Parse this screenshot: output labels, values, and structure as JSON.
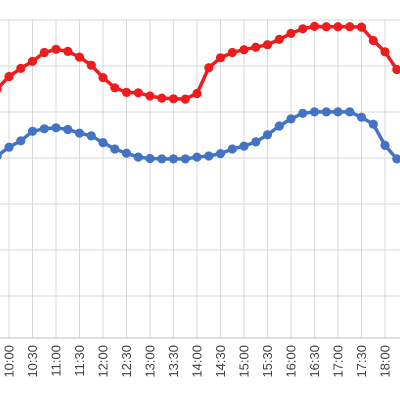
{
  "chart_data": {
    "type": "line",
    "categories": [
      "10:00",
      "10:30",
      "11:00",
      "11:30",
      "12:00",
      "12:30",
      "13:00",
      "13:30",
      "14:00",
      "14:30",
      "15:00",
      "15:30",
      "16:00",
      "16:30",
      "17:00",
      "17:30",
      "18:00"
    ],
    "grid": true,
    "series": [
      {
        "color": "#ee1c1c",
        "x": [
          9.75,
          10,
          10.25,
          10.5,
          10.75,
          11,
          11.25,
          11.5,
          11.75,
          12,
          12.25,
          12.5,
          12.75,
          13,
          13.25,
          13.5,
          13.75,
          14,
          14.25,
          14.5,
          14.75,
          15,
          15.25,
          15.5,
          15.75,
          16,
          16.25,
          16.5,
          16.75,
          17,
          17.25,
          17.5,
          17.75,
          18,
          18.25
        ],
        "values": [
          0.705,
          0.74,
          0.763,
          0.783,
          0.808,
          0.817,
          0.811,
          0.795,
          0.772,
          0.737,
          0.708,
          0.695,
          0.694,
          0.685,
          0.679,
          0.677,
          0.676,
          0.692,
          0.765,
          0.793,
          0.808,
          0.816,
          0.823,
          0.83,
          0.845,
          0.862,
          0.875,
          0.882,
          0.881,
          0.881,
          0.881,
          0.88,
          0.842,
          0.81,
          0.76
        ]
      },
      {
        "color": "#4472c4",
        "x": [
          9.75,
          10,
          10.25,
          10.5,
          10.75,
          11,
          11.25,
          11.5,
          11.75,
          12,
          12.25,
          12.5,
          12.75,
          13,
          13.25,
          13.5,
          13.75,
          14,
          14.25,
          14.5,
          14.75,
          15,
          15.25,
          15.5,
          15.75,
          16,
          16.25,
          16.5,
          16.75,
          17,
          17.25,
          17.5,
          17.75,
          18,
          18.25
        ],
        "values": [
          0.515,
          0.54,
          0.558,
          0.585,
          0.592,
          0.595,
          0.59,
          0.58,
          0.572,
          0.553,
          0.535,
          0.523,
          0.512,
          0.508,
          0.507,
          0.507,
          0.507,
          0.512,
          0.515,
          0.522,
          0.535,
          0.543,
          0.555,
          0.575,
          0.6,
          0.62,
          0.636,
          0.64,
          0.64,
          0.64,
          0.64,
          0.625,
          0.605,
          0.545,
          0.507
        ]
      }
    ]
  }
}
